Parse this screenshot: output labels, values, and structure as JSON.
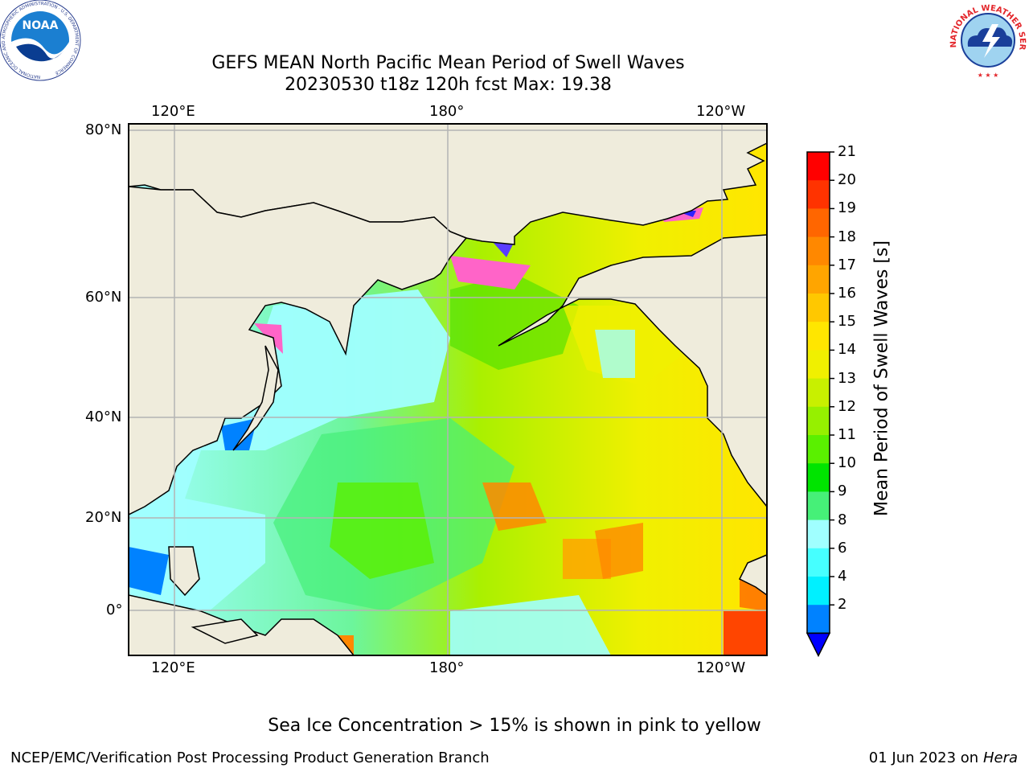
{
  "header": {
    "title_line1": "GEFS MEAN North Pacific Mean Period of Swell Waves",
    "title_line2": "20230530 t18z 120h fcst   Max: 19.38"
  },
  "logos": {
    "noaa_text": "NOAA",
    "noaa_ring_text": "NATIONAL OCEANIC AND ATMOSPHERIC ADMINISTRATION · U.S. DEPARTMENT OF COMMERCE",
    "nws_ring_text": "NATIONAL WEATHER SERVICE"
  },
  "map": {
    "lon_labels": [
      "120°E",
      "180°",
      "120°W"
    ],
    "lat_labels": [
      "80°N",
      "60°N",
      "40°N",
      "20°N",
      "0°"
    ],
    "land_color": "#efecdc",
    "grid_color": "#b4b4b4"
  },
  "colorbar": {
    "label": "Mean Period of Swell Waves [s]",
    "ticks": [
      "21",
      "20",
      "19",
      "18",
      "17",
      "16",
      "15",
      "14",
      "13",
      "12",
      "11",
      "10",
      "9",
      "8",
      "6",
      "4",
      "2"
    ],
    "colors": [
      "#ff0000",
      "#ff3300",
      "#ff6600",
      "#ff8800",
      "#ffa500",
      "#ffc800",
      "#ffe600",
      "#f0f000",
      "#c8f000",
      "#96f000",
      "#5af000",
      "#00e400",
      "#46f078",
      "#a0ffff",
      "#46ffff",
      "#00f0ff",
      "#0082ff"
    ],
    "under_color": "#0000ff"
  },
  "note": "Sea Ice Concentration > 15% is shown in pink to yellow",
  "footer": {
    "left": "NCEP/EMC/Verification Post Processing Product Generation Branch",
    "right_date": "01 Jun 2023 on",
    "right_host": "Hera"
  }
}
